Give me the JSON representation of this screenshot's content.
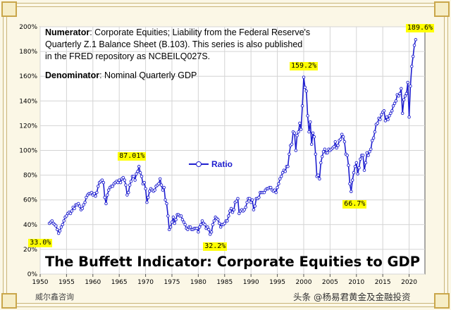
{
  "chart_data": {
    "type": "line",
    "title": "The Buffett Indicator: Corporate Equities to GDP",
    "xlabel": "",
    "ylabel": "",
    "xlim": [
      1950,
      2023
    ],
    "ylim": [
      0,
      200
    ],
    "x_ticks": [
      "1950",
      "1955",
      "1960",
      "1965",
      "1970",
      "1975",
      "1980",
      "1985",
      "1990",
      "1995",
      "2000",
      "2005",
      "2010",
      "2015",
      "2020"
    ],
    "y_ticks": [
      "0%",
      "20%",
      "40%",
      "60%",
      "80%",
      "100%",
      "120%",
      "140%",
      "160%",
      "180%",
      "200%"
    ],
    "grid": true,
    "legend_position": "center-left",
    "series": [
      {
        "name": "Ratio",
        "color": "#1f1fcf",
        "points": [
          [
            1951.75,
            41
          ],
          [
            1952.0,
            42
          ],
          [
            1952.25,
            43
          ],
          [
            1952.5,
            41
          ],
          [
            1952.75,
            40
          ],
          [
            1953.0,
            39
          ],
          [
            1953.25,
            36
          ],
          [
            1953.5,
            33
          ],
          [
            1953.75,
            35
          ],
          [
            1954.0,
            38
          ],
          [
            1954.25,
            40
          ],
          [
            1954.5,
            43
          ],
          [
            1954.75,
            46
          ],
          [
            1955.0,
            47
          ],
          [
            1955.25,
            49
          ],
          [
            1955.5,
            50
          ],
          [
            1955.75,
            49
          ],
          [
            1956.0,
            51
          ],
          [
            1956.25,
            54
          ],
          [
            1956.5,
            53
          ],
          [
            1956.75,
            56
          ],
          [
            1957.0,
            56
          ],
          [
            1957.25,
            57
          ],
          [
            1957.5,
            55
          ],
          [
            1957.75,
            52
          ],
          [
            1958.0,
            53
          ],
          [
            1958.25,
            56
          ],
          [
            1958.5,
            58
          ],
          [
            1958.75,
            62
          ],
          [
            1959.0,
            64
          ],
          [
            1959.25,
            65
          ],
          [
            1959.5,
            65
          ],
          [
            1959.75,
            66
          ],
          [
            1960.0,
            64
          ],
          [
            1960.25,
            65
          ],
          [
            1960.5,
            63
          ],
          [
            1960.75,
            66
          ],
          [
            1961.0,
            71
          ],
          [
            1961.25,
            74
          ],
          [
            1961.5,
            75
          ],
          [
            1961.75,
            76
          ],
          [
            1962.0,
            74
          ],
          [
            1962.25,
            62
          ],
          [
            1962.5,
            57
          ],
          [
            1962.75,
            64
          ],
          [
            1963.0,
            68
          ],
          [
            1963.25,
            70
          ],
          [
            1963.5,
            71
          ],
          [
            1963.75,
            71
          ],
          [
            1964.0,
            73
          ],
          [
            1964.25,
            74
          ],
          [
            1964.5,
            75
          ],
          [
            1964.75,
            74
          ],
          [
            1965.0,
            76
          ],
          [
            1965.25,
            74
          ],
          [
            1965.5,
            77
          ],
          [
            1965.75,
            78
          ],
          [
            1966.0,
            76
          ],
          [
            1966.25,
            72
          ],
          [
            1966.5,
            64
          ],
          [
            1966.75,
            66
          ],
          [
            1967.0,
            72
          ],
          [
            1967.25,
            75
          ],
          [
            1967.5,
            79
          ],
          [
            1967.75,
            79
          ],
          [
            1968.0,
            76
          ],
          [
            1968.25,
            81
          ],
          [
            1968.5,
            83
          ],
          [
            1968.75,
            87
          ],
          [
            1969.0,
            82
          ],
          [
            1969.25,
            79
          ],
          [
            1969.5,
            73
          ],
          [
            1969.75,
            74
          ],
          [
            1970.0,
            69
          ],
          [
            1970.25,
            58
          ],
          [
            1970.5,
            62
          ],
          [
            1970.75,
            67
          ],
          [
            1971.0,
            69
          ],
          [
            1971.25,
            68
          ],
          [
            1971.5,
            67
          ],
          [
            1971.75,
            68
          ],
          [
            1972.0,
            71
          ],
          [
            1972.25,
            72
          ],
          [
            1972.5,
            73
          ],
          [
            1972.75,
            77
          ],
          [
            1973.0,
            72
          ],
          [
            1973.25,
            68
          ],
          [
            1973.5,
            70
          ],
          [
            1973.75,
            60
          ],
          [
            1974.0,
            57
          ],
          [
            1974.25,
            47
          ],
          [
            1974.5,
            36
          ],
          [
            1974.75,
            38
          ],
          [
            1975.0,
            42
          ],
          [
            1975.25,
            46
          ],
          [
            1975.5,
            41
          ],
          [
            1975.75,
            44
          ],
          [
            1976.0,
            48
          ],
          [
            1976.25,
            48
          ],
          [
            1976.5,
            47
          ],
          [
            1976.75,
            47
          ],
          [
            1977.0,
            44
          ],
          [
            1977.25,
            42
          ],
          [
            1977.5,
            40
          ],
          [
            1977.75,
            37
          ],
          [
            1978.0,
            36
          ],
          [
            1978.25,
            38
          ],
          [
            1978.5,
            38
          ],
          [
            1978.75,
            36
          ],
          [
            1979.0,
            36
          ],
          [
            1979.25,
            37
          ],
          [
            1979.5,
            37
          ],
          [
            1979.75,
            37
          ],
          [
            1980.0,
            34
          ],
          [
            1980.25,
            38
          ],
          [
            1980.5,
            40
          ],
          [
            1980.75,
            43
          ],
          [
            1981.0,
            41
          ],
          [
            1981.25,
            40
          ],
          [
            1981.5,
            37
          ],
          [
            1981.75,
            38
          ],
          [
            1982.0,
            36
          ],
          [
            1982.25,
            32.2
          ],
          [
            1982.5,
            34
          ],
          [
            1982.75,
            40
          ],
          [
            1983.0,
            43
          ],
          [
            1983.25,
            46
          ],
          [
            1983.5,
            45
          ],
          [
            1983.75,
            44
          ],
          [
            1984.0,
            41
          ],
          [
            1984.25,
            38
          ],
          [
            1984.5,
            40
          ],
          [
            1984.75,
            40
          ],
          [
            1985.0,
            41
          ],
          [
            1985.25,
            43
          ],
          [
            1985.5,
            43
          ],
          [
            1985.75,
            47
          ],
          [
            1986.0,
            51
          ],
          [
            1986.25,
            53
          ],
          [
            1986.5,
            50
          ],
          [
            1986.75,
            52
          ],
          [
            1987.0,
            58
          ],
          [
            1987.25,
            59
          ],
          [
            1987.5,
            61
          ],
          [
            1987.75,
            49
          ],
          [
            1988.0,
            51
          ],
          [
            1988.25,
            52
          ],
          [
            1988.5,
            51
          ],
          [
            1988.75,
            52
          ],
          [
            1989.0,
            54
          ],
          [
            1989.25,
            58
          ],
          [
            1989.5,
            61
          ],
          [
            1989.75,
            61
          ],
          [
            1990.0,
            58
          ],
          [
            1990.25,
            60
          ],
          [
            1990.5,
            52
          ],
          [
            1990.75,
            55
          ],
          [
            1991.0,
            61
          ],
          [
            1991.25,
            61
          ],
          [
            1991.5,
            62
          ],
          [
            1991.75,
            66
          ],
          [
            1992.0,
            66
          ],
          [
            1992.25,
            66
          ],
          [
            1992.5,
            66
          ],
          [
            1992.75,
            68
          ],
          [
            1993.0,
            69
          ],
          [
            1993.25,
            69
          ],
          [
            1993.5,
            70
          ],
          [
            1993.75,
            70
          ],
          [
            1994.0,
            68
          ],
          [
            1994.25,
            67
          ],
          [
            1994.5,
            68
          ],
          [
            1994.75,
            66
          ],
          [
            1995.0,
            70
          ],
          [
            1995.25,
            73
          ],
          [
            1995.5,
            77
          ],
          [
            1995.75,
            79
          ],
          [
            1996.0,
            82
          ],
          [
            1996.25,
            84
          ],
          [
            1996.5,
            83
          ],
          [
            1996.75,
            87
          ],
          [
            1997.0,
            87
          ],
          [
            1997.25,
            97
          ],
          [
            1997.5,
            104
          ],
          [
            1997.75,
            105
          ],
          [
            1998.0,
            115
          ],
          [
            1998.25,
            114
          ],
          [
            1998.5,
            100
          ],
          [
            1998.75,
            112
          ],
          [
            1999.0,
            115
          ],
          [
            1999.25,
            122
          ],
          [
            1999.5,
            117
          ],
          [
            1999.75,
            136
          ],
          [
            2000.0,
            159.2
          ],
          [
            2000.25,
            151
          ],
          [
            2000.5,
            148
          ],
          [
            2000.75,
            128
          ],
          [
            2001.0,
            115
          ],
          [
            2001.25,
            123
          ],
          [
            2001.5,
            105
          ],
          [
            2001.75,
            114
          ],
          [
            2002.0,
            111
          ],
          [
            2002.25,
            97
          ],
          [
            2002.5,
            79
          ],
          [
            2002.75,
            80
          ],
          [
            2003.0,
            77
          ],
          [
            2003.25,
            90
          ],
          [
            2003.5,
            95
          ],
          [
            2003.75,
            99
          ],
          [
            2004.0,
            101
          ],
          [
            2004.25,
            98
          ],
          [
            2004.5,
            98
          ],
          [
            2004.75,
            101
          ],
          [
            2005.0,
            100
          ],
          [
            2005.25,
            101
          ],
          [
            2005.5,
            102
          ],
          [
            2005.75,
            103
          ],
          [
            2006.0,
            107
          ],
          [
            2006.25,
            102
          ],
          [
            2006.5,
            104
          ],
          [
            2006.75,
            108
          ],
          [
            2007.0,
            109
          ],
          [
            2007.25,
            113
          ],
          [
            2007.5,
            111
          ],
          [
            2007.75,
            107
          ],
          [
            2008.0,
            97
          ],
          [
            2008.25,
            96
          ],
          [
            2008.5,
            88
          ],
          [
            2008.75,
            73
          ],
          [
            2009.0,
            66.7
          ],
          [
            2009.25,
            76
          ],
          [
            2009.5,
            82
          ],
          [
            2009.75,
            87
          ],
          [
            2010.0,
            90
          ],
          [
            2010.25,
            81
          ],
          [
            2010.5,
            86
          ],
          [
            2010.75,
            93
          ],
          [
            2011.0,
            96
          ],
          [
            2011.25,
            96
          ],
          [
            2011.5,
            84
          ],
          [
            2011.75,
            90
          ],
          [
            2012.0,
            98
          ],
          [
            2012.25,
            96
          ],
          [
            2012.5,
            99
          ],
          [
            2012.75,
            101
          ],
          [
            2013.0,
            108
          ],
          [
            2013.25,
            110
          ],
          [
            2013.5,
            115
          ],
          [
            2013.75,
            121
          ],
          [
            2014.0,
            122
          ],
          [
            2014.25,
            126
          ],
          [
            2014.5,
            125
          ],
          [
            2014.75,
            129
          ],
          [
            2015.0,
            131
          ],
          [
            2015.25,
            132
          ],
          [
            2015.5,
            124
          ],
          [
            2015.75,
            127
          ],
          [
            2016.0,
            125
          ],
          [
            2016.25,
            128
          ],
          [
            2016.5,
            130
          ],
          [
            2016.75,
            132
          ],
          [
            2017.0,
            136
          ],
          [
            2017.25,
            138
          ],
          [
            2017.5,
            140
          ],
          [
            2017.75,
            145
          ],
          [
            2018.0,
            144
          ],
          [
            2018.25,
            146
          ],
          [
            2018.5,
            150
          ],
          [
            2018.75,
            130
          ],
          [
            2019.0,
            141
          ],
          [
            2019.25,
            144
          ],
          [
            2019.5,
            146
          ],
          [
            2019.75,
            155
          ],
          [
            2020.0,
            127
          ],
          [
            2020.25,
            152
          ],
          [
            2020.5,
            168
          ],
          [
            2020.75,
            176
          ],
          [
            2021.0,
            185
          ],
          [
            2021.25,
            189.6
          ]
        ]
      }
    ],
    "annotations": [
      {
        "label": "33.0%",
        "x": 1951.5,
        "y": 33.0
      },
      {
        "label": "87.01%",
        "x": 1968.75,
        "y": 87.01
      },
      {
        "label": "32.2%",
        "x": 1982.25,
        "y": 32.2
      },
      {
        "label": "159.2%",
        "x": 2000.0,
        "y": 159.2
      },
      {
        "label": "66.7%",
        "x": 2009.0,
        "y": 66.7
      },
      {
        "label": "189.6%",
        "x": 2021.25,
        "y": 189.6
      }
    ]
  },
  "notes": {
    "numerator_label": "Numerator",
    "numerator_text_line1": ": Corporate Equities; Liability from the Federal Reserve's",
    "numerator_text_line2": "Quarterly Z.1 Balance Sheet (B.103). This series is also published",
    "numerator_text_line3": "in the FRED repository  as NCBEILQ027S.",
    "denominator_label": "Denominator",
    "denominator_text": ": Nominal Quarterly GDP"
  },
  "legend_label": "Ratio",
  "watermark_left": "威尔鑫咨询",
  "watermark_right": "头条 @杨易君黄金及金融投资",
  "colors": {
    "line": "#1f1fcf",
    "annotation_bg": "#ffff00",
    "frame": "#fbf7e6",
    "plot_bg": "#ffffff"
  }
}
